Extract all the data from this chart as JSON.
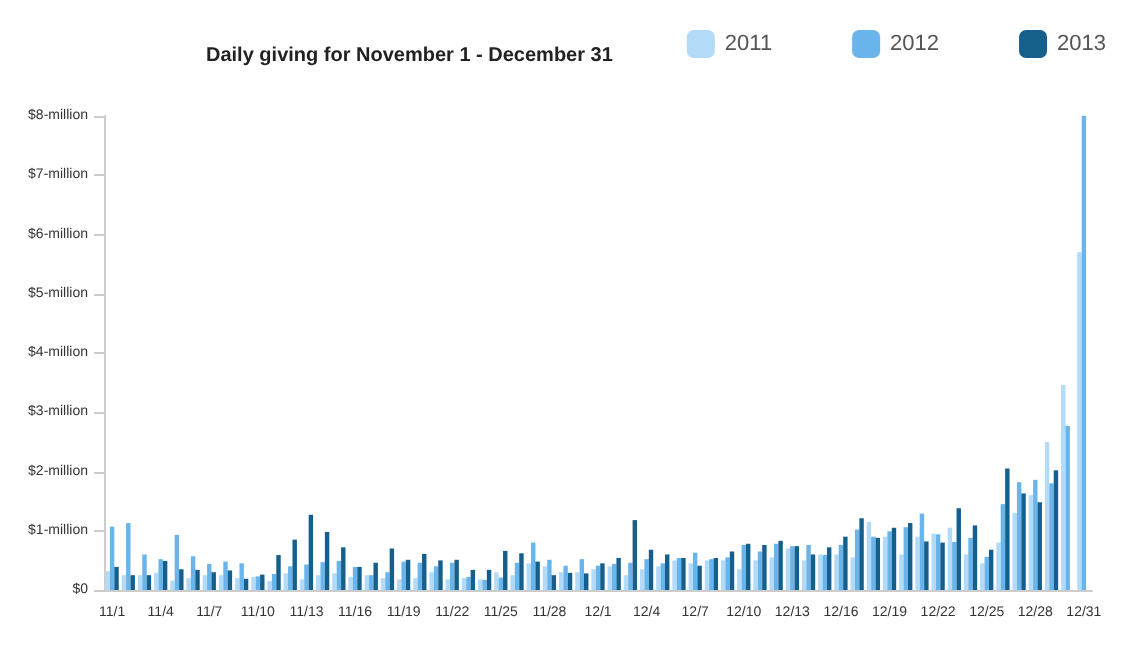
{
  "chart_data": {
    "type": "bar",
    "title": "Daily giving for November 1 - December 31",
    "categories": [
      "11/1",
      null,
      null,
      "11/4",
      null,
      null,
      "11/7",
      null,
      null,
      "11/10",
      null,
      null,
      "11/13",
      null,
      null,
      "11/16",
      null,
      null,
      "11/19",
      null,
      null,
      "11/22",
      null,
      null,
      "11/25",
      null,
      null,
      "11/28",
      null,
      null,
      "12/1",
      null,
      null,
      "12/4",
      null,
      null,
      "12/7",
      null,
      null,
      "12/10",
      null,
      null,
      "12/13",
      null,
      null,
      "12/16",
      null,
      null,
      "12/19",
      null,
      null,
      "12/22",
      null,
      null,
      "12/25",
      null,
      null,
      "12/28",
      null,
      null,
      "12/31"
    ],
    "series": [
      {
        "name": "2011",
        "color": "#b3dbf7",
        "values": [
          0.32,
          0.25,
          0.25,
          0.29,
          0.16,
          0.2,
          0.25,
          0.25,
          0.2,
          0.22,
          0.15,
          0.28,
          0.18,
          0.25,
          0.28,
          0.22,
          0.25,
          0.2,
          0.18,
          0.2,
          0.3,
          0.18,
          0.2,
          0.18,
          0.3,
          0.25,
          0.45,
          0.4,
          0.3,
          0.3,
          0.35,
          0.4,
          0.25,
          0.35,
          0.4,
          0.5,
          0.45,
          0.5,
          0.5,
          0.35,
          0.5,
          0.55,
          0.7,
          0.5,
          0.6,
          0.6,
          0.55,
          1.15,
          0.9,
          0.6,
          0.9,
          0.95,
          1.05,
          0.6,
          0.45,
          0.8,
          1.3,
          1.6,
          2.5,
          3.46,
          5.7
        ]
      },
      {
        "name": "2012",
        "color": "#6ab4ec",
        "values": [
          1.07,
          1.13,
          0.6,
          0.52,
          0.93,
          0.57,
          0.44,
          0.48,
          0.45,
          0.23,
          0.27,
          0.4,
          0.43,
          0.47,
          0.49,
          0.39,
          0.25,
          0.3,
          0.48,
          0.46,
          0.4,
          0.46,
          0.22,
          0.17,
          0.21,
          0.46,
          0.8,
          0.51,
          0.41,
          0.52,
          0.41,
          0.44,
          0.46,
          0.52,
          0.45,
          0.54,
          0.63,
          0.52,
          0.55,
          0.76,
          0.65,
          0.78,
          0.74,
          0.76,
          0.59,
          0.76,
          1.02,
          0.9,
          0.99,
          1.06,
          1.29,
          0.94,
          0.81,
          0.88,
          0.56,
          1.45,
          1.82,
          1.86,
          1.8,
          2.77,
          8.0
        ]
      },
      {
        "name": "2013",
        "color": "#155f8c",
        "values": [
          0.39,
          0.25,
          0.25,
          0.49,
          0.35,
          0.34,
          0.3,
          0.33,
          0.19,
          0.26,
          0.59,
          0.85,
          1.27,
          0.98,
          0.72,
          0.39,
          0.46,
          0.7,
          0.51,
          0.61,
          0.5,
          0.51,
          0.34,
          0.34,
          0.66,
          0.62,
          0.48,
          0.25,
          0.29,
          0.28,
          0.45,
          0.54,
          1.18,
          0.68,
          0.6,
          0.54,
          0.41,
          0.54,
          0.65,
          0.78,
          0.76,
          0.83,
          0.74,
          0.6,
          0.72,
          0.9,
          1.21,
          0.88,
          1.05,
          1.13,
          0.82,
          0.8,
          1.38,
          1.09,
          0.68,
          2.05,
          1.63,
          1.48,
          2.02,
          null,
          null
        ]
      }
    ],
    "ylim": [
      0,
      8
    ],
    "yticks": [
      {
        "value": 0,
        "label": "$0"
      },
      {
        "value": 1,
        "label": "$1-million"
      },
      {
        "value": 2,
        "label": "$2-million"
      },
      {
        "value": 3,
        "label": "$3-million"
      },
      {
        "value": 4,
        "label": "$4-million"
      },
      {
        "value": 5,
        "label": "$5-million"
      },
      {
        "value": 6,
        "label": "$6-million"
      },
      {
        "value": 7,
        "label": "$7-million"
      },
      {
        "value": 8,
        "label": "$8-million"
      }
    ],
    "grid": false,
    "legend": "top right"
  }
}
